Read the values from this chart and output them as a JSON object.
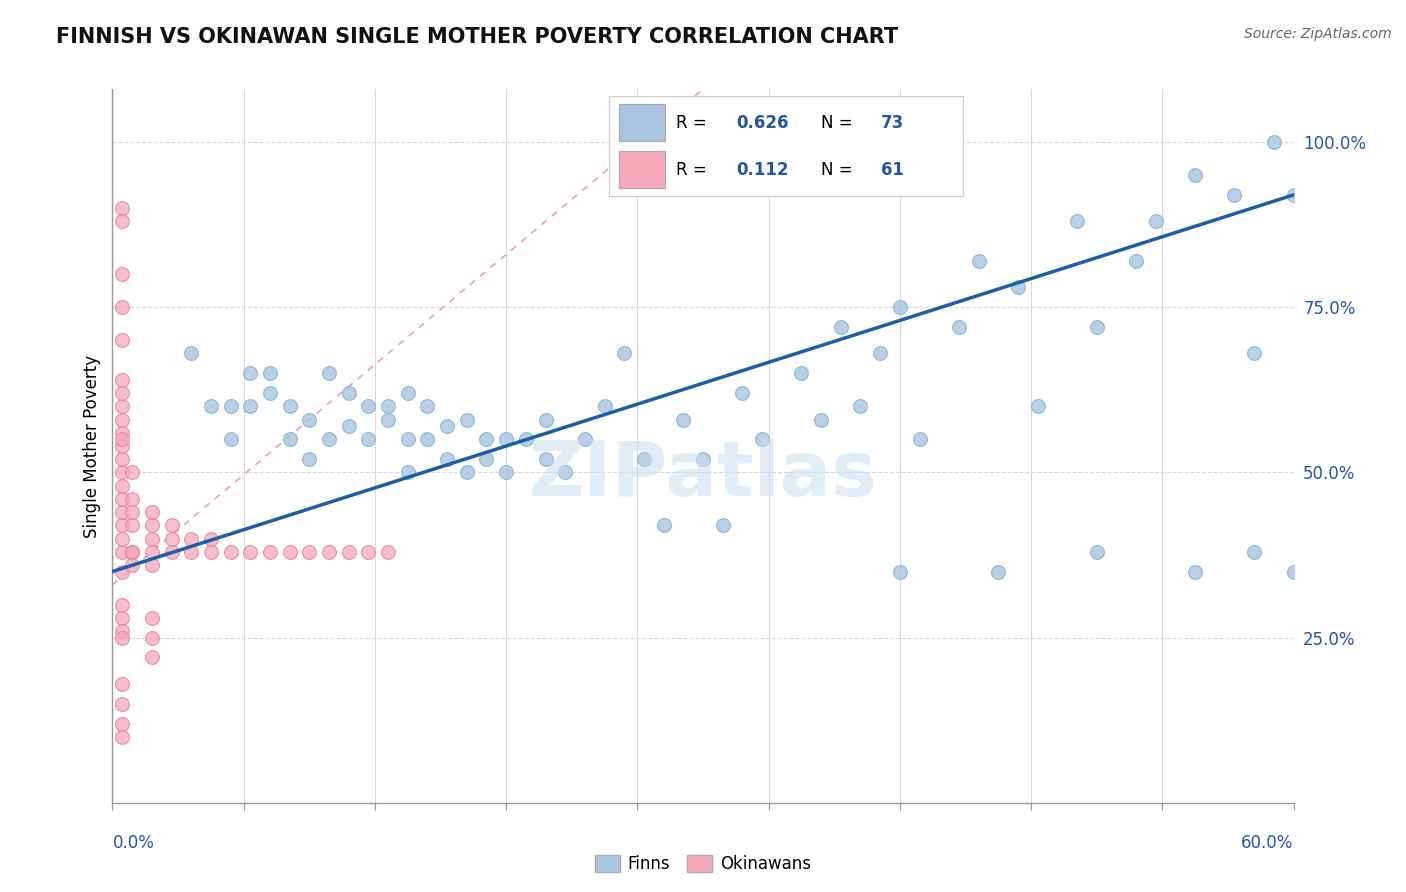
{
  "title": "FINNISH VS OKINAWAN SINGLE MOTHER POVERTY CORRELATION CHART",
  "source": "Source: ZipAtlas.com",
  "ylabel": "Single Mother Poverty",
  "y_tick_labels": [
    "25.0%",
    "50.0%",
    "75.0%",
    "100.0%"
  ],
  "y_tick_values": [
    0.25,
    0.5,
    0.75,
    1.0
  ],
  "x_range": [
    0.0,
    0.6
  ],
  "y_range": [
    0.0,
    1.08
  ],
  "finn_color": "#a8c4e0",
  "finn_edge_color": "#7aafd4",
  "okin_color": "#f4a7b9",
  "okin_edge_color": "#e87898",
  "trendline_color": "#1a5fa8",
  "okin_trendline_color": "#e8a0b0",
  "grid_color": "#d8d8d8",
  "tick_color": "#aaaaaa",
  "watermark": "ZIPatlas",
  "watermark_color": "#c8dff0",
  "label_color": "#2255aa",
  "finn_scatter_x": [
    0.04,
    0.05,
    0.06,
    0.06,
    0.07,
    0.07,
    0.08,
    0.08,
    0.09,
    0.09,
    0.1,
    0.1,
    0.11,
    0.11,
    0.12,
    0.12,
    0.13,
    0.13,
    0.14,
    0.14,
    0.15,
    0.15,
    0.15,
    0.16,
    0.16,
    0.17,
    0.17,
    0.18,
    0.18,
    0.19,
    0.19,
    0.2,
    0.2,
    0.21,
    0.22,
    0.22,
    0.23,
    0.24,
    0.25,
    0.26,
    0.27,
    0.28,
    0.29,
    0.3,
    0.31,
    0.32,
    0.33,
    0.35,
    0.36,
    0.37,
    0.38,
    0.39,
    0.4,
    0.41,
    0.43,
    0.44,
    0.46,
    0.47,
    0.49,
    0.5,
    0.52,
    0.53,
    0.55,
    0.57,
    0.58,
    0.59,
    0.6,
    0.6,
    0.58,
    0.55,
    0.5,
    0.45,
    0.4
  ],
  "finn_scatter_y": [
    0.68,
    0.6,
    0.6,
    0.55,
    0.65,
    0.6,
    0.65,
    0.62,
    0.6,
    0.55,
    0.58,
    0.52,
    0.55,
    0.65,
    0.57,
    0.62,
    0.6,
    0.55,
    0.58,
    0.6,
    0.62,
    0.55,
    0.5,
    0.55,
    0.6,
    0.57,
    0.52,
    0.58,
    0.5,
    0.55,
    0.52,
    0.55,
    0.5,
    0.55,
    0.58,
    0.52,
    0.5,
    0.55,
    0.6,
    0.68,
    0.52,
    0.42,
    0.58,
    0.52,
    0.42,
    0.62,
    0.55,
    0.65,
    0.58,
    0.72,
    0.6,
    0.68,
    0.75,
    0.55,
    0.72,
    0.82,
    0.78,
    0.6,
    0.88,
    0.72,
    0.82,
    0.88,
    0.95,
    0.92,
    0.68,
    1.0,
    0.92,
    0.35,
    0.38,
    0.35,
    0.38,
    0.35,
    0.35
  ],
  "okin_scatter_x": [
    0.005,
    0.005,
    0.005,
    0.005,
    0.005,
    0.005,
    0.005,
    0.005,
    0.005,
    0.005,
    0.005,
    0.005,
    0.005,
    0.005,
    0.005,
    0.005,
    0.005,
    0.005,
    0.005,
    0.005,
    0.005,
    0.005,
    0.005,
    0.005,
    0.005,
    0.01,
    0.01,
    0.01,
    0.01,
    0.01,
    0.01,
    0.01,
    0.02,
    0.02,
    0.02,
    0.02,
    0.02,
    0.03,
    0.03,
    0.03,
    0.04,
    0.04,
    0.05,
    0.05,
    0.06,
    0.07,
    0.08,
    0.09,
    0.1,
    0.11,
    0.12,
    0.13,
    0.14,
    0.02,
    0.02,
    0.02,
    0.005,
    0.005,
    0.005,
    0.005
  ],
  "okin_scatter_y": [
    0.35,
    0.38,
    0.4,
    0.42,
    0.44,
    0.46,
    0.48,
    0.5,
    0.52,
    0.54,
    0.56,
    0.58,
    0.6,
    0.62,
    0.64,
    0.3,
    0.28,
    0.26,
    0.25,
    0.55,
    0.7,
    0.75,
    0.8,
    0.9,
    0.88,
    0.38,
    0.42,
    0.44,
    0.46,
    0.5,
    0.38,
    0.36,
    0.4,
    0.42,
    0.44,
    0.38,
    0.36,
    0.4,
    0.42,
    0.38,
    0.4,
    0.38,
    0.4,
    0.38,
    0.38,
    0.38,
    0.38,
    0.38,
    0.38,
    0.38,
    0.38,
    0.38,
    0.38,
    0.28,
    0.25,
    0.22,
    0.18,
    0.15,
    0.12,
    0.1
  ]
}
